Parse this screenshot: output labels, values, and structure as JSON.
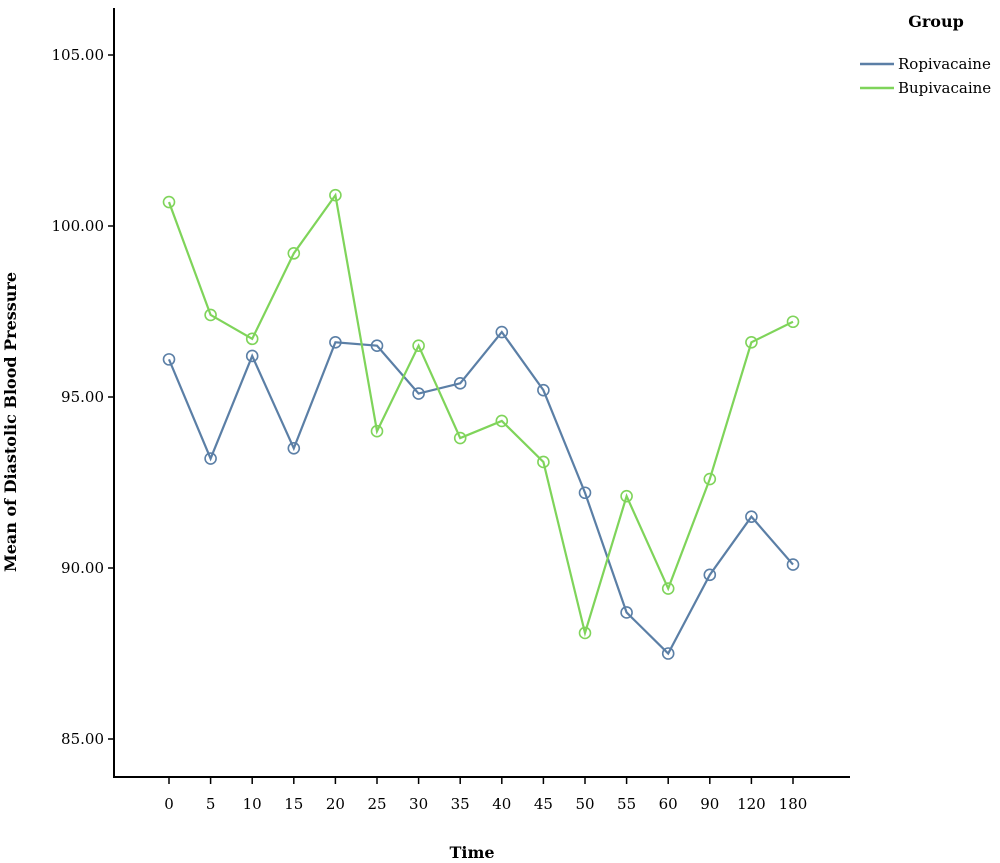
{
  "chart_data": {
    "type": "line",
    "xlabel": "Time",
    "ylabel": "Mean of Diastolic Blood Pressure",
    "categories": [
      "0",
      "5",
      "10",
      "15",
      "20",
      "25",
      "30",
      "35",
      "40",
      "45",
      "50",
      "55",
      "60",
      "90",
      "120",
      "180"
    ],
    "ylim": [
      84.5,
      106.5
    ],
    "yticks": [
      "85.00",
      "90.00",
      "95.00",
      "100.00",
      "105.00"
    ],
    "grid": false,
    "legend": {
      "title": "Group",
      "placement": "top-right"
    },
    "series": [
      {
        "name": "Ropivacaine",
        "color": "#5b7fa6",
        "values": [
          96.1,
          93.2,
          96.2,
          93.5,
          96.6,
          96.5,
          95.1,
          95.4,
          96.9,
          95.2,
          92.2,
          88.7,
          87.5,
          89.8,
          91.5,
          90.1
        ]
      },
      {
        "name": "Bupivacaine",
        "color": "#7fd45a",
        "values": [
          100.7,
          97.4,
          96.7,
          99.2,
          100.9,
          94.0,
          96.5,
          93.8,
          94.3,
          93.1,
          88.1,
          92.1,
          89.4,
          92.6,
          96.6,
          97.2
        ]
      }
    ]
  }
}
